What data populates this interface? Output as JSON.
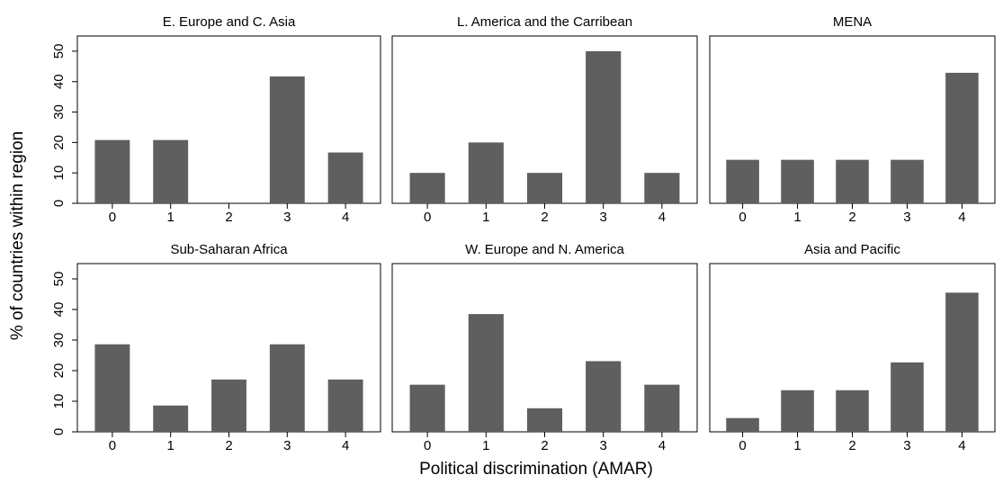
{
  "ylabel": "% of countries within region",
  "xlabel": "Political discrimination (AMAR)",
  "chart_data": [
    {
      "type": "bar",
      "title": "E. Europe and C. Asia",
      "categories": [
        0,
        1,
        2,
        3,
        4
      ],
      "values": [
        20.8,
        20.8,
        0,
        41.7,
        16.7
      ],
      "color": "#5f5f5f",
      "ylim": [
        0,
        55
      ],
      "yticks": [
        0,
        10,
        20,
        30,
        40,
        50
      ]
    },
    {
      "type": "bar",
      "title": "L. America and the Carribean",
      "categories": [
        0,
        1,
        2,
        3,
        4
      ],
      "values": [
        10,
        20,
        10,
        50,
        10
      ],
      "color": "#5f5f5f",
      "ylim": [
        0,
        55
      ]
    },
    {
      "type": "bar",
      "title": "MENA",
      "categories": [
        0,
        1,
        2,
        3,
        4
      ],
      "values": [
        14.3,
        14.3,
        14.3,
        14.3,
        42.9
      ],
      "color": "#5f5f5f",
      "ylim": [
        0,
        55
      ]
    },
    {
      "type": "bar",
      "title": "Sub-Saharan Africa",
      "categories": [
        0,
        1,
        2,
        3,
        4
      ],
      "values": [
        28.6,
        8.6,
        17.1,
        28.6,
        17.1
      ],
      "color": "#5f5f5f",
      "ylim": [
        0,
        55
      ],
      "yticks": [
        0,
        10,
        20,
        30,
        40,
        50
      ]
    },
    {
      "type": "bar",
      "title": "W. Europe and N. America",
      "categories": [
        0,
        1,
        2,
        3,
        4
      ],
      "values": [
        15.4,
        38.5,
        7.7,
        23.1,
        15.4
      ],
      "color": "#5f5f5f",
      "ylim": [
        0,
        55
      ]
    },
    {
      "type": "bar",
      "title": "Asia and Pacific",
      "categories": [
        0,
        1,
        2,
        3,
        4
      ],
      "values": [
        4.5,
        13.6,
        13.6,
        22.7,
        45.5
      ],
      "color": "#5f5f5f",
      "ylim": [
        0,
        55
      ]
    }
  ]
}
